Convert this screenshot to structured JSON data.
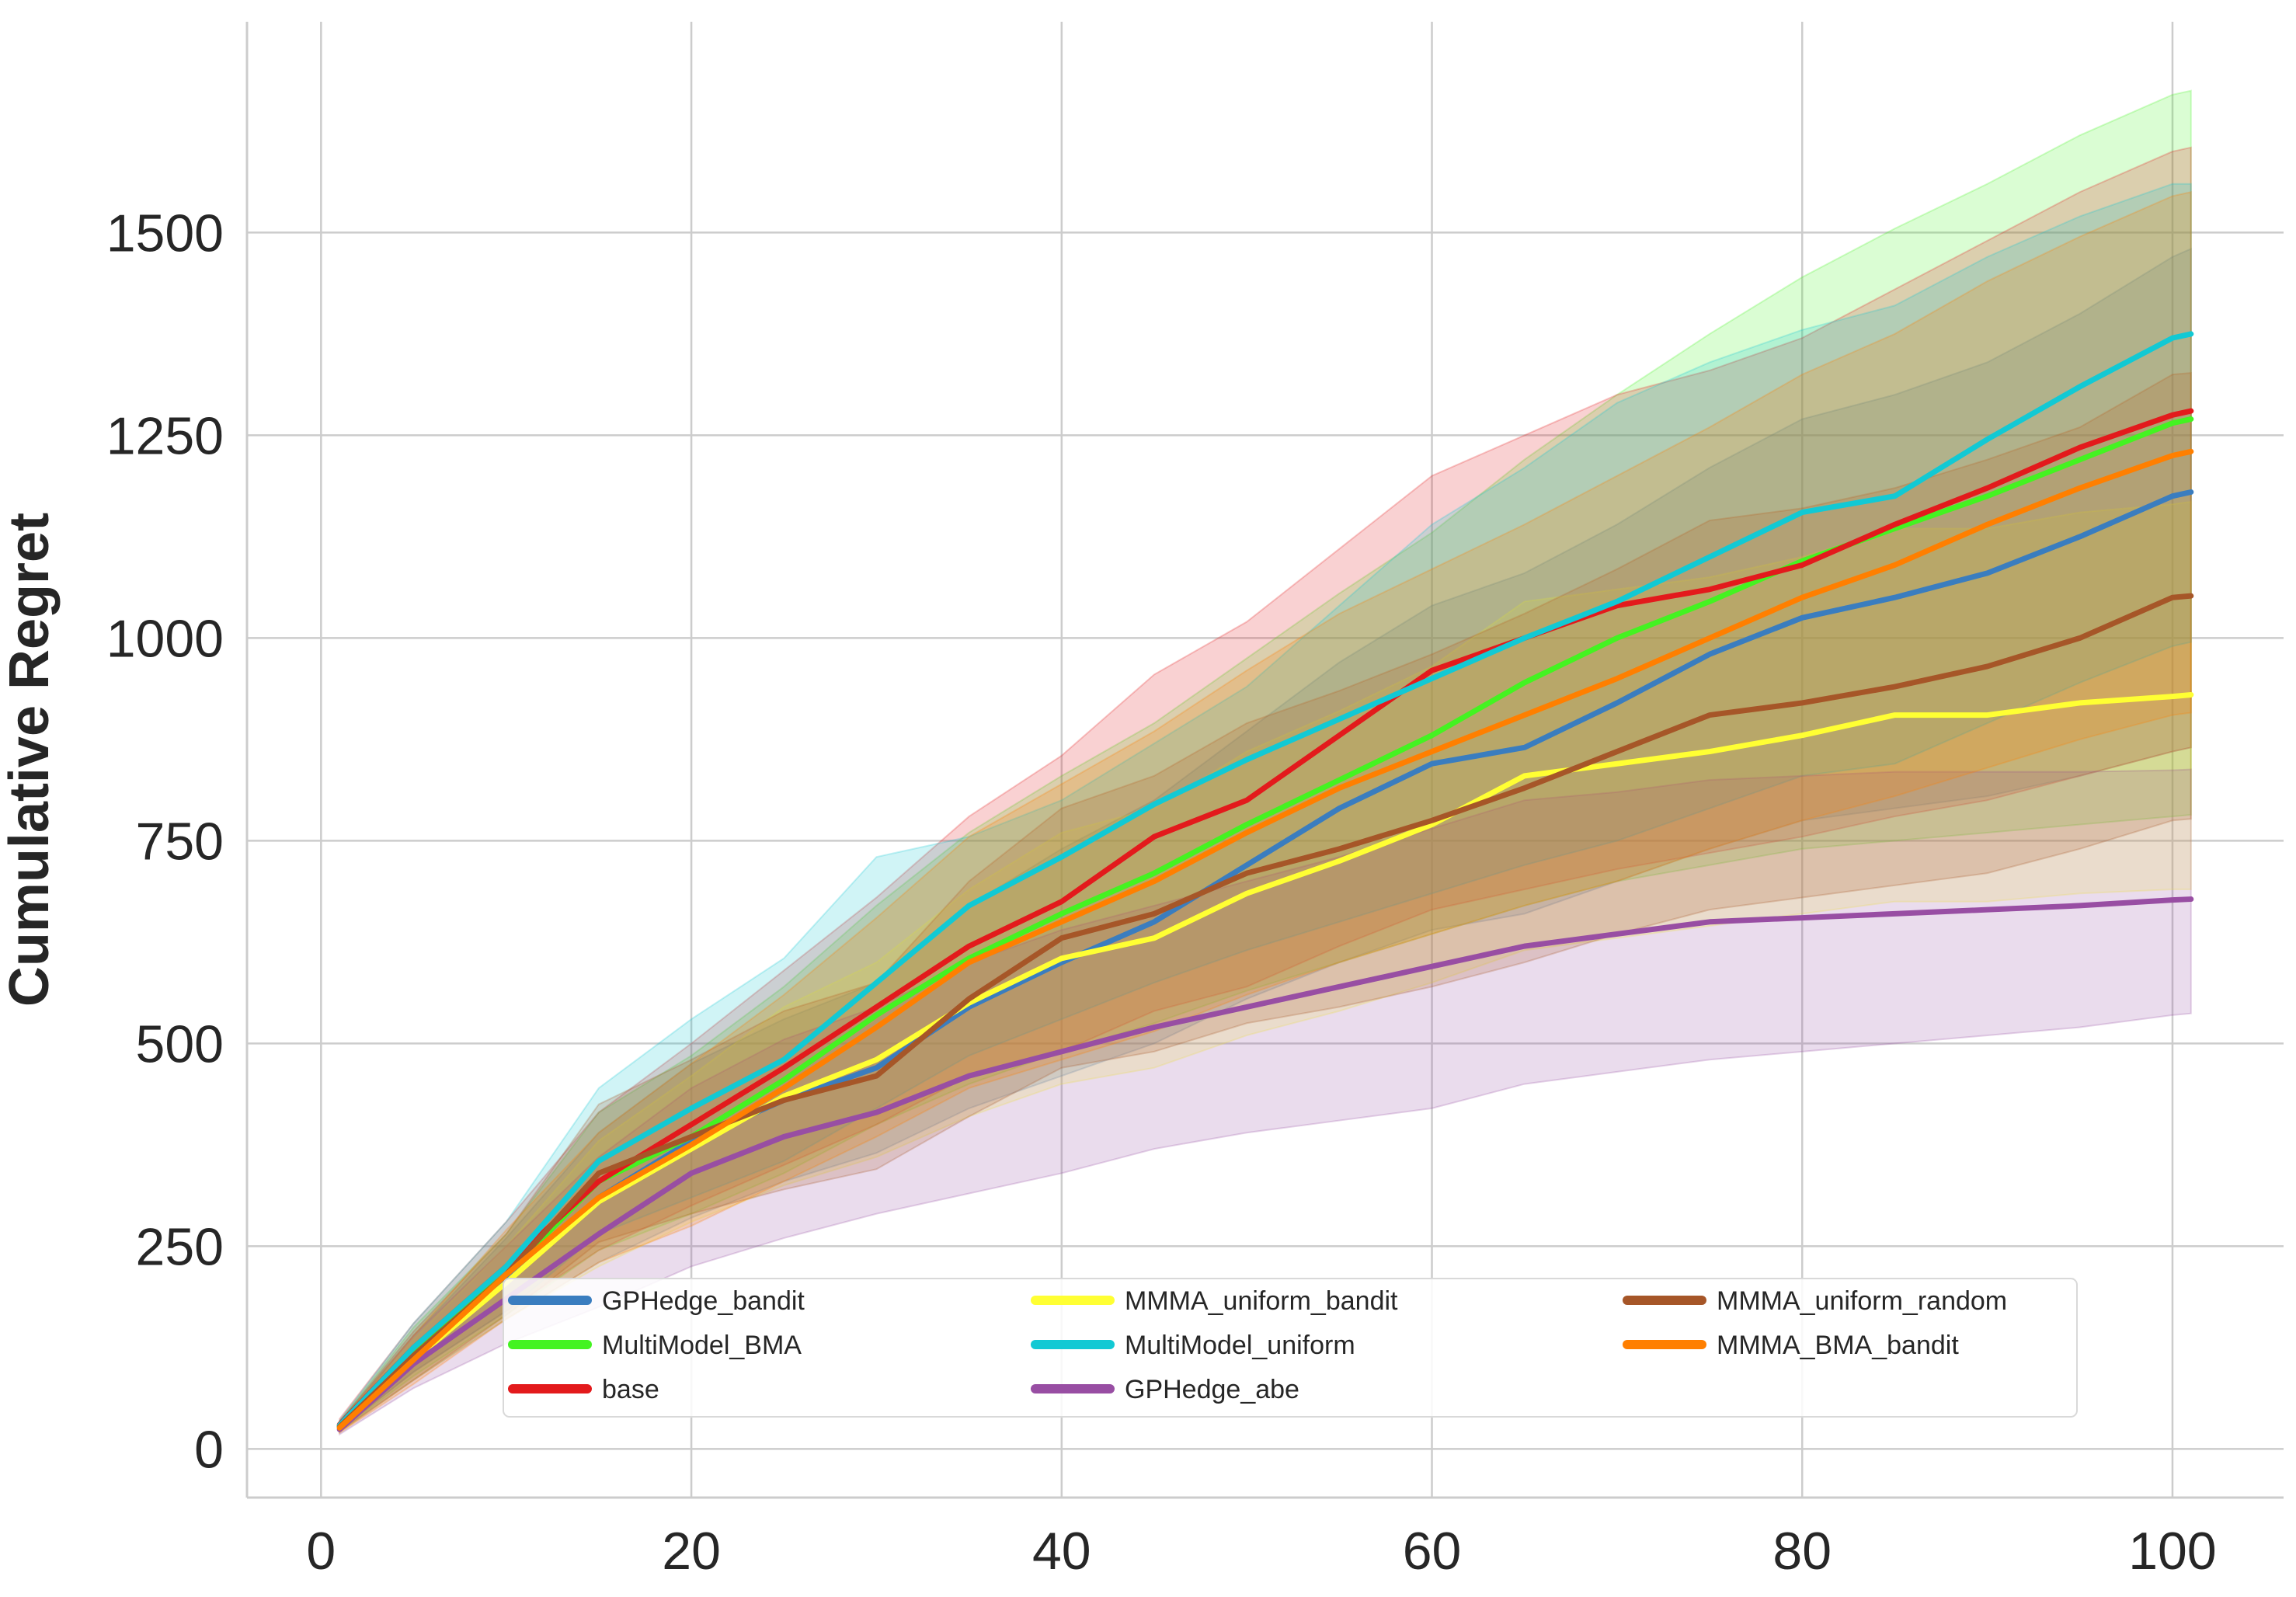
{
  "chart_data": {
    "type": "line",
    "xlabel": "",
    "ylabel": "Cumulative Regret",
    "xlim": [
      -4,
      106
    ],
    "ylim": [
      -60,
      1760
    ],
    "xticks": [
      0,
      20,
      40,
      60,
      80,
      100
    ],
    "yticks": [
      0,
      250,
      500,
      750,
      1000,
      1250,
      1500
    ],
    "grid": true,
    "legend": {
      "position": "lower-center",
      "columns": 3
    },
    "x": [
      1,
      5,
      10,
      15,
      20,
      25,
      30,
      35,
      40,
      45,
      50,
      55,
      60,
      65,
      70,
      75,
      80,
      85,
      90,
      95,
      100,
      101
    ],
    "series": [
      {
        "name": "GPHedge_bandit",
        "color": "#3a7dbf",
        "mean": [
          28,
          115,
          210,
          310,
          380,
          430,
          470,
          545,
          600,
          650,
          720,
          790,
          845,
          865,
          920,
          980,
          1025,
          1050,
          1080,
          1125,
          1175,
          1180
        ],
        "lower": [
          22,
          85,
          160,
          230,
          285,
          330,
          365,
          420,
          460,
          500,
          555,
          600,
          640,
          660,
          700,
          740,
          775,
          790,
          805,
          830,
          860,
          865
        ],
        "upper": [
          34,
          140,
          260,
          390,
          475,
          530,
          575,
          670,
          740,
          800,
          885,
          970,
          1040,
          1080,
          1140,
          1210,
          1270,
          1300,
          1340,
          1400,
          1470,
          1480
        ]
      },
      {
        "name": "MultiModel_BMA",
        "color": "#44f321",
        "mean": [
          28,
          120,
          215,
          330,
          385,
          455,
          535,
          605,
          660,
          710,
          770,
          825,
          880,
          945,
          1000,
          1045,
          1095,
          1135,
          1175,
          1220,
          1265,
          1270
        ],
        "lower": [
          22,
          90,
          165,
          245,
          290,
          340,
          400,
          450,
          490,
          525,
          565,
          600,
          635,
          670,
          700,
          720,
          740,
          750,
          760,
          770,
          780,
          782
        ],
        "upper": [
          34,
          150,
          265,
          415,
          485,
          570,
          670,
          760,
          830,
          895,
          975,
          1055,
          1130,
          1220,
          1300,
          1375,
          1445,
          1505,
          1560,
          1620,
          1670,
          1675
        ]
      },
      {
        "name": "base",
        "color": "#e31a1c",
        "mean": [
          30,
          125,
          225,
          330,
          400,
          470,
          545,
          620,
          675,
          755,
          800,
          880,
          960,
          1000,
          1040,
          1060,
          1090,
          1140,
          1185,
          1235,
          1275,
          1280
        ],
        "lower": [
          23,
          95,
          170,
          245,
          300,
          350,
          400,
          460,
          490,
          540,
          570,
          620,
          665,
          690,
          715,
          735,
          755,
          780,
          800,
          830,
          860,
          865
        ],
        "upper": [
          37,
          155,
          280,
          415,
          500,
          590,
          680,
          780,
          855,
          955,
          1020,
          1110,
          1200,
          1250,
          1300,
          1330,
          1370,
          1430,
          1490,
          1550,
          1600,
          1605
        ]
      },
      {
        "name": "MMMA_uniform_bandit",
        "color": "#ffff33",
        "mean": [
          26,
          110,
          205,
          305,
          370,
          435,
          480,
          550,
          605,
          630,
          685,
          725,
          770,
          830,
          845,
          860,
          880,
          905,
          905,
          920,
          928,
          930
        ],
        "lower": [
          20,
          85,
          160,
          225,
          280,
          325,
          360,
          410,
          450,
          470,
          510,
          540,
          575,
          615,
          630,
          645,
          660,
          675,
          675,
          685,
          690,
          690
        ],
        "upper": [
          32,
          135,
          250,
          380,
          460,
          545,
          600,
          690,
          760,
          790,
          860,
          910,
          965,
          1045,
          1060,
          1075,
          1100,
          1135,
          1135,
          1155,
          1165,
          1168
        ]
      },
      {
        "name": "MultiModel_uniform",
        "color": "#12c9d4",
        "mean": [
          29,
          125,
          225,
          355,
          420,
          480,
          575,
          670,
          730,
          795,
          850,
          900,
          950,
          1000,
          1045,
          1100,
          1155,
          1175,
          1245,
          1310,
          1370,
          1375
        ],
        "lower": [
          23,
          95,
          170,
          265,
          310,
          355,
          420,
          485,
          530,
          575,
          615,
          650,
          685,
          720,
          750,
          790,
          830,
          845,
          895,
          945,
          990,
          995
        ],
        "upper": [
          35,
          155,
          280,
          445,
          530,
          605,
          730,
          755,
          800,
          870,
          940,
          1040,
          1140,
          1210,
          1290,
          1340,
          1380,
          1410,
          1470,
          1520,
          1560,
          1560
        ]
      },
      {
        "name": "GPHedge_abe",
        "color": "#984ea3",
        "mean": [
          24,
          105,
          185,
          265,
          340,
          385,
          415,
          460,
          490,
          520,
          545,
          570,
          595,
          620,
          635,
          650,
          655,
          660,
          665,
          670,
          677,
          678
        ],
        "lower": [
          18,
          75,
          130,
          175,
          225,
          260,
          290,
          315,
          340,
          370,
          390,
          405,
          420,
          450,
          465,
          480,
          490,
          500,
          510,
          520,
          535,
          537
        ],
        "upper": [
          30,
          140,
          250,
          360,
          445,
          505,
          545,
          600,
          640,
          670,
          700,
          730,
          765,
          800,
          810,
          825,
          830,
          835,
          835,
          835,
          837,
          838
        ]
      },
      {
        "name": "MMMA_uniform_random",
        "color": "#a65628",
        "mean": [
          27,
          115,
          215,
          340,
          385,
          430,
          460,
          555,
          630,
          660,
          710,
          740,
          775,
          815,
          860,
          905,
          920,
          940,
          965,
          1000,
          1050,
          1052
        ],
        "lower": [
          21,
          85,
          165,
          255,
          290,
          320,
          345,
          410,
          470,
          490,
          525,
          545,
          570,
          600,
          635,
          665,
          680,
          695,
          710,
          740,
          775,
          777
        ],
        "upper": [
          33,
          145,
          265,
          425,
          480,
          540,
          575,
          700,
          790,
          830,
          895,
          935,
          980,
          1030,
          1085,
          1145,
          1160,
          1185,
          1220,
          1260,
          1325,
          1327
        ]
      },
      {
        "name": "MMMA_BMA_bandit",
        "color": "#ff7f00",
        "mean": [
          26,
          110,
          215,
          310,
          375,
          445,
          520,
          600,
          650,
          700,
          760,
          815,
          860,
          905,
          950,
          1000,
          1050,
          1090,
          1140,
          1185,
          1225,
          1230
        ],
        "lower": [
          20,
          80,
          160,
          230,
          275,
          330,
          385,
          445,
          480,
          515,
          560,
          600,
          635,
          670,
          700,
          740,
          775,
          805,
          840,
          875,
          905,
          908
        ],
        "upper": [
          32,
          140,
          270,
          390,
          475,
          560,
          655,
          755,
          820,
          885,
          960,
          1030,
          1085,
          1140,
          1200,
          1260,
          1325,
          1375,
          1440,
          1495,
          1545,
          1550
        ]
      }
    ]
  }
}
